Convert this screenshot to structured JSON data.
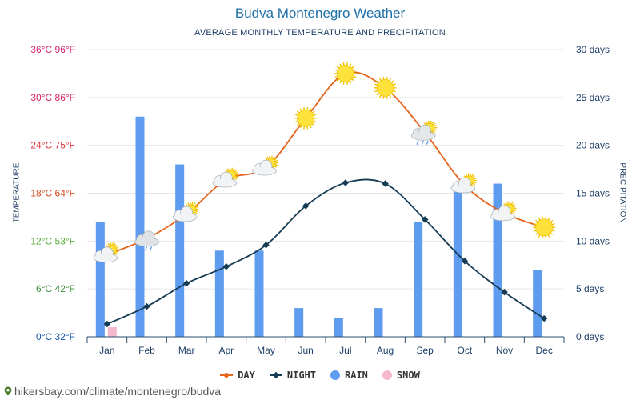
{
  "title": "Budva Montenegro Weather",
  "subtitle": "AVERAGE MONTHLY TEMPERATURE AND PRECIPITATION",
  "footer": "hikersbay.com/climate/montenegro/budva",
  "chart_data": {
    "type": "line",
    "categories": [
      "Jan",
      "Feb",
      "Mar",
      "Apr",
      "May",
      "Jun",
      "Jul",
      "Aug",
      "Sep",
      "Oct",
      "Nov",
      "Dec"
    ],
    "ylabel_left": "TEMPERATURE",
    "ylabel_right": "PRECIPITATION",
    "ylim_left": [
      0,
      36
    ],
    "ylim_right": [
      0,
      30
    ],
    "left_ticks": [
      {
        "label": "0°C 32°F",
        "color": "#1558b0"
      },
      {
        "label": "6°C 42°F",
        "color": "#3f8f3f"
      },
      {
        "label": "12°C 53°F",
        "color": "#5cae3a"
      },
      {
        "label": "18°C 64°F",
        "color": "#d4471a"
      },
      {
        "label": "24°C 75°F",
        "color": "#d9343b"
      },
      {
        "label": "30°C 86°F",
        "color": "#d81f5a"
      },
      {
        "label": "36°C 96°F",
        "color": "#dc1f6e"
      }
    ],
    "right_ticks": [
      "0 days",
      "5 days",
      "10 days",
      "15 days",
      "20 days",
      "25 days",
      "30 days"
    ],
    "grid": true,
    "legend": [
      {
        "name": "DAY",
        "color": "#e4641b"
      },
      {
        "name": "NIGHT",
        "color": "#163c55"
      },
      {
        "name": "RAIN",
        "color": "#5e9cf0"
      },
      {
        "name": "SNOW",
        "color": "#f5b9cb"
      }
    ],
    "series": [
      {
        "name": "DAY",
        "axis": "left",
        "values": [
          10.3,
          12.3,
          15.4,
          19.7,
          21.2,
          27.4,
          33.0,
          31.2,
          25.6,
          19.0,
          15.5,
          13.7
        ]
      },
      {
        "name": "NIGHT",
        "axis": "left",
        "values": [
          1.6,
          3.8,
          6.7,
          8.8,
          11.5,
          16.4,
          19.3,
          19.2,
          14.7,
          9.5,
          5.6,
          2.3
        ]
      },
      {
        "name": "RAIN",
        "axis": "right",
        "values": [
          12,
          23,
          18,
          9,
          9,
          3,
          2,
          3,
          12,
          16,
          16,
          7
        ]
      },
      {
        "name": "SNOW",
        "axis": "right",
        "values": [
          1,
          0,
          0,
          0,
          0,
          0,
          0,
          0,
          0,
          0,
          0,
          0
        ]
      }
    ],
    "day_icons": [
      "partly-cloudy-icon",
      "cloud-rain-icon",
      "partly-cloudy-icon",
      "partly-cloudy-icon",
      "partly-cloudy-icon",
      "sun-icon",
      "sun-icon",
      "sun-icon",
      "partly-cloudy-rain-icon",
      "partly-cloudy-icon",
      "partly-cloudy-icon",
      "sun-icon"
    ]
  }
}
